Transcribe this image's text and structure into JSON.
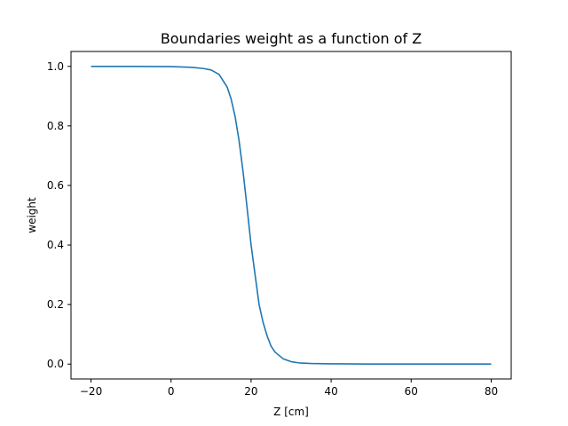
{
  "chart_data": {
    "type": "line",
    "title": "Boundaries weight as a function of Z",
    "xlabel": "Z [cm]",
    "ylabel": "weight",
    "xlim": [
      -25,
      85
    ],
    "ylim": [
      -0.05,
      1.05
    ],
    "xticks": [
      -20,
      0,
      20,
      40,
      60,
      80
    ],
    "xtick_labels": [
      "−20",
      "0",
      "20",
      "40",
      "60",
      "80"
    ],
    "yticks": [
      0.0,
      0.2,
      0.4,
      0.6,
      0.8,
      1.0
    ],
    "ytick_labels": [
      "0.0",
      "0.2",
      "0.4",
      "0.6",
      "0.8",
      "1.0"
    ],
    "grid": false,
    "series": [
      {
        "color": "#1f77b4",
        "x": [
          -20,
          -10,
          0,
          5,
          8,
          10,
          12,
          14,
          15,
          16,
          17,
          18,
          19,
          20,
          21,
          22,
          23,
          24,
          25,
          26,
          28,
          30,
          32,
          35,
          40,
          50,
          60,
          70,
          80
        ],
        "y": [
          1.0,
          1.0,
          0.999,
          0.997,
          0.993,
          0.988,
          0.973,
          0.931,
          0.891,
          0.832,
          0.75,
          0.646,
          0.525,
          0.4,
          0.3,
          0.2,
          0.14,
          0.095,
          0.06,
          0.04,
          0.018,
          0.008,
          0.004,
          0.002,
          0.001,
          0.0,
          0.0,
          0.0,
          0.0
        ]
      }
    ]
  }
}
